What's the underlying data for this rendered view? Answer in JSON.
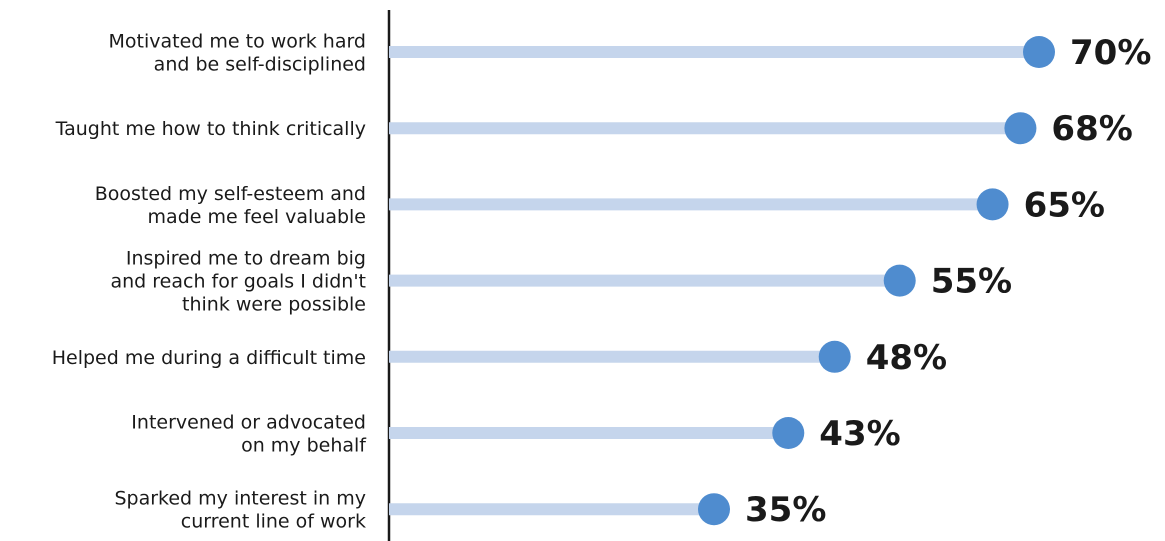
{
  "chart_data": {
    "type": "bar",
    "style": "lollipop",
    "orientation": "horizontal",
    "categories": [
      [
        "Motivated me to work hard",
        "and be self-disciplined"
      ],
      [
        "Taught me how to think critically"
      ],
      [
        "Boosted my self-esteem and",
        "made me feel valuable"
      ],
      [
        "Inspired me to dream big",
        "and reach for goals I didn't",
        "think were possible"
      ],
      [
        "Helped me during a difficult time"
      ],
      [
        "Intervened or advocated",
        "on my behalf"
      ],
      [
        "Sparked my interest in my",
        "current line of work"
      ]
    ],
    "values": [
      70,
      68,
      65,
      55,
      48,
      43,
      35
    ],
    "value_labels": [
      "70%",
      "68%",
      "65%",
      "55%",
      "48%",
      "43%",
      "35%"
    ],
    "xlim": [
      0,
      100
    ],
    "grid": false,
    "legend": "none",
    "colors": {
      "stem": "#c5d5ec",
      "dot": "#4f8ccf",
      "axis": "#1a1a1a",
      "text": "#1a1a1a"
    }
  }
}
